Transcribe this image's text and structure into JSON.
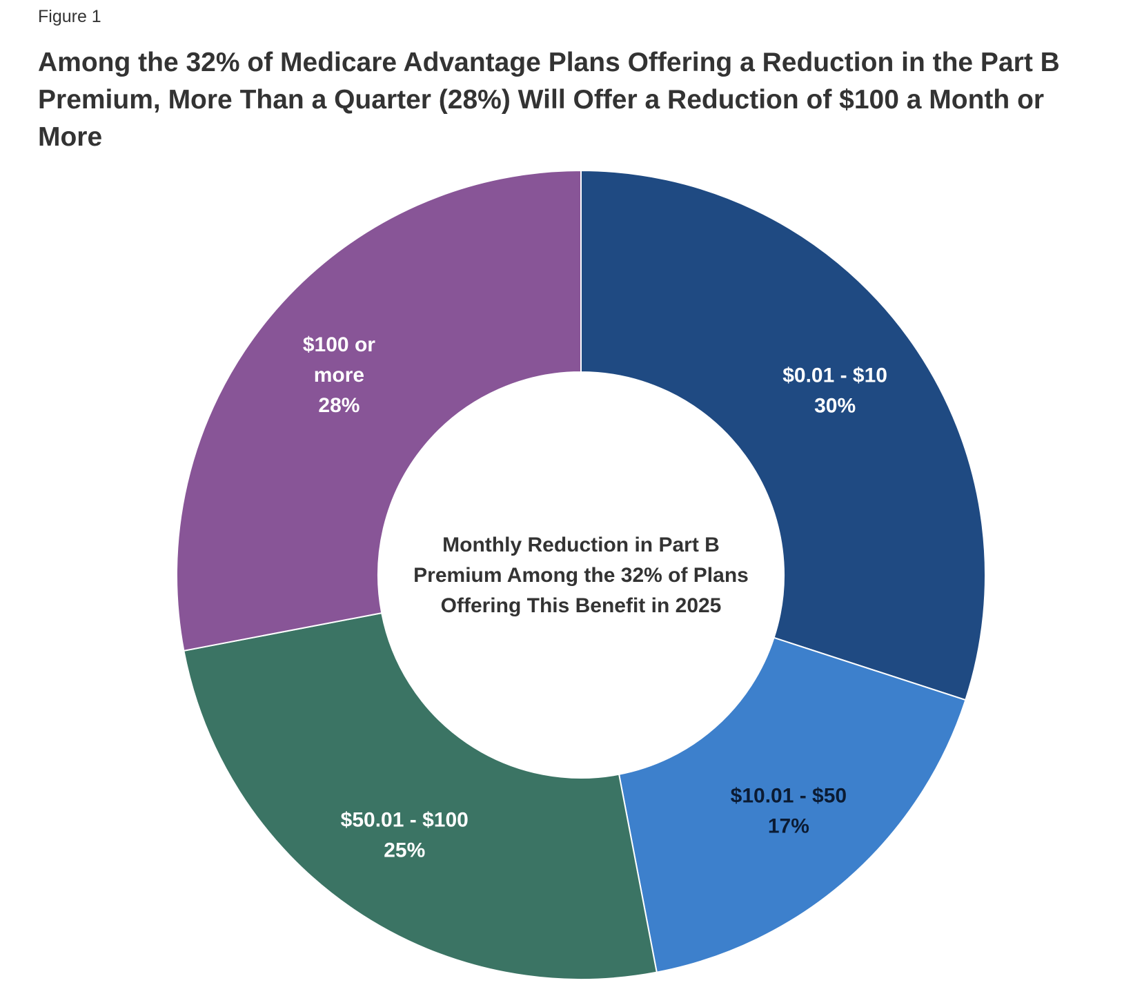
{
  "figure_label": "Figure 1",
  "chart_data": {
    "type": "pie",
    "variant": "donut",
    "title": "Among the 32% of Medicare Advantage Plans Offering a Reduction in the Part B Premium, More Than a Quarter (28%) Will Offer a Reduction of $100 a Month or More",
    "center_label": [
      "Monthly Reduction in Part B",
      "Premium Among the 32% of Plans",
      "Offering This Benefit in 2025"
    ],
    "slices": [
      {
        "category": "$0.01 - $10",
        "value": 30,
        "label_text": "30%",
        "label_lines": [
          "$0.01 - $10",
          "30%"
        ],
        "color": "#1f4a82",
        "label_color": "#ffffff"
      },
      {
        "category": "$10.01 - $50",
        "value": 17,
        "label_text": "17%",
        "label_lines": [
          "$10.01 - $50",
          "17%"
        ],
        "color": "#3d80cc",
        "label_color": "#0b1b33"
      },
      {
        "category": "$50.01 - $100",
        "value": 25,
        "label_text": "25%",
        "label_lines": [
          "$50.01 - $100",
          "25%"
        ],
        "color": "#3b7464",
        "label_color": "#ffffff"
      },
      {
        "category": "$100 or more",
        "value": 28,
        "label_text": "28%",
        "label_lines": [
          "$100 or",
          "more",
          "28%"
        ],
        "color": "#885597",
        "label_color": "#ffffff"
      }
    ],
    "start": "12 o'clock",
    "direction": "clockwise",
    "legend": "none (labels on slices)"
  }
}
